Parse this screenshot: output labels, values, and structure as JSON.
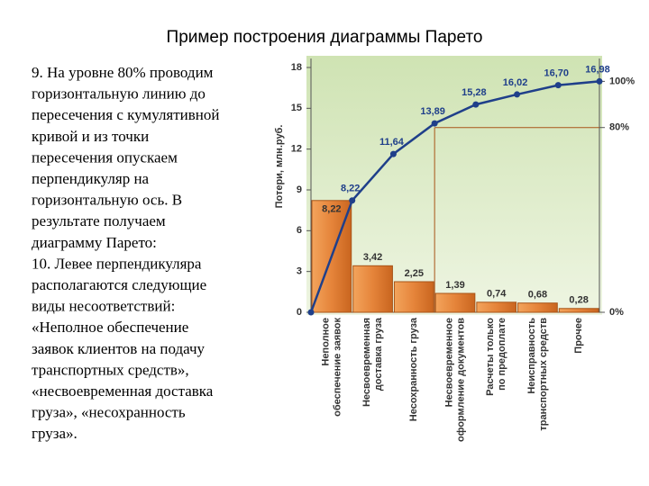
{
  "title": "Пример построения диаграммы Парето",
  "text": [
    "9. На уровне 80% проводим",
    "горизонтальную линию до",
    "пересечения с кумулятивной",
    "кривой и из точки",
    "пересечения опускаем",
    "перпендикуляр на",
    "горизонтальную ось. В",
    "результате получаем",
    "диаграмму Парето:",
    "10. Левее перпендикуляра",
    "располагаются следующие",
    "виды несоответствий:",
    "«Неполное обеспечение",
    "заявок клиентов на подачу",
    "транспортных средств»,",
    "«несвоевременная доставка",
    "груза», «несохранность",
    "груза»."
  ],
  "chart_data": {
    "type": "pareto",
    "ylabel": "Потери, млн.руб.",
    "categories": [
      [
        "Неполное",
        "обеспечение заявок"
      ],
      [
        "Несвоевременная",
        "доставка груза"
      ],
      [
        "Несохранность груза"
      ],
      [
        "Несвоевременное",
        "оформление документов"
      ],
      [
        "Расчеты только",
        "по предоплате"
      ],
      [
        "Неисправность",
        "транспортных средств"
      ],
      [
        "Прочее"
      ]
    ],
    "values": [
      8.22,
      3.42,
      2.25,
      1.39,
      0.74,
      0.68,
      0.28
    ],
    "value_labels": [
      "8,22",
      "3,42",
      "2,25",
      "1,39",
      "0,74",
      "0,68",
      "0,28"
    ],
    "color": "#e5843a",
    "cumulative_values": [
      0,
      8.22,
      11.64,
      13.89,
      15.28,
      16.02,
      16.7,
      16.98
    ],
    "cumulative_labels": [
      null,
      "8,22",
      "11,64",
      "13,89",
      "15,28",
      "16,02",
      "16,70",
      "16,98"
    ],
    "line_color": "#1f3f8a",
    "ylim": [
      0,
      18
    ],
    "yticks": [
      0,
      3,
      6,
      9,
      12,
      15,
      18
    ],
    "y2lim": [
      0,
      106
    ],
    "y2ticks": [
      {
        "value": 0,
        "label": "0%"
      },
      {
        "value": 80,
        "label": "80%"
      },
      {
        "value": 100,
        "label": "100%"
      }
    ]
  }
}
